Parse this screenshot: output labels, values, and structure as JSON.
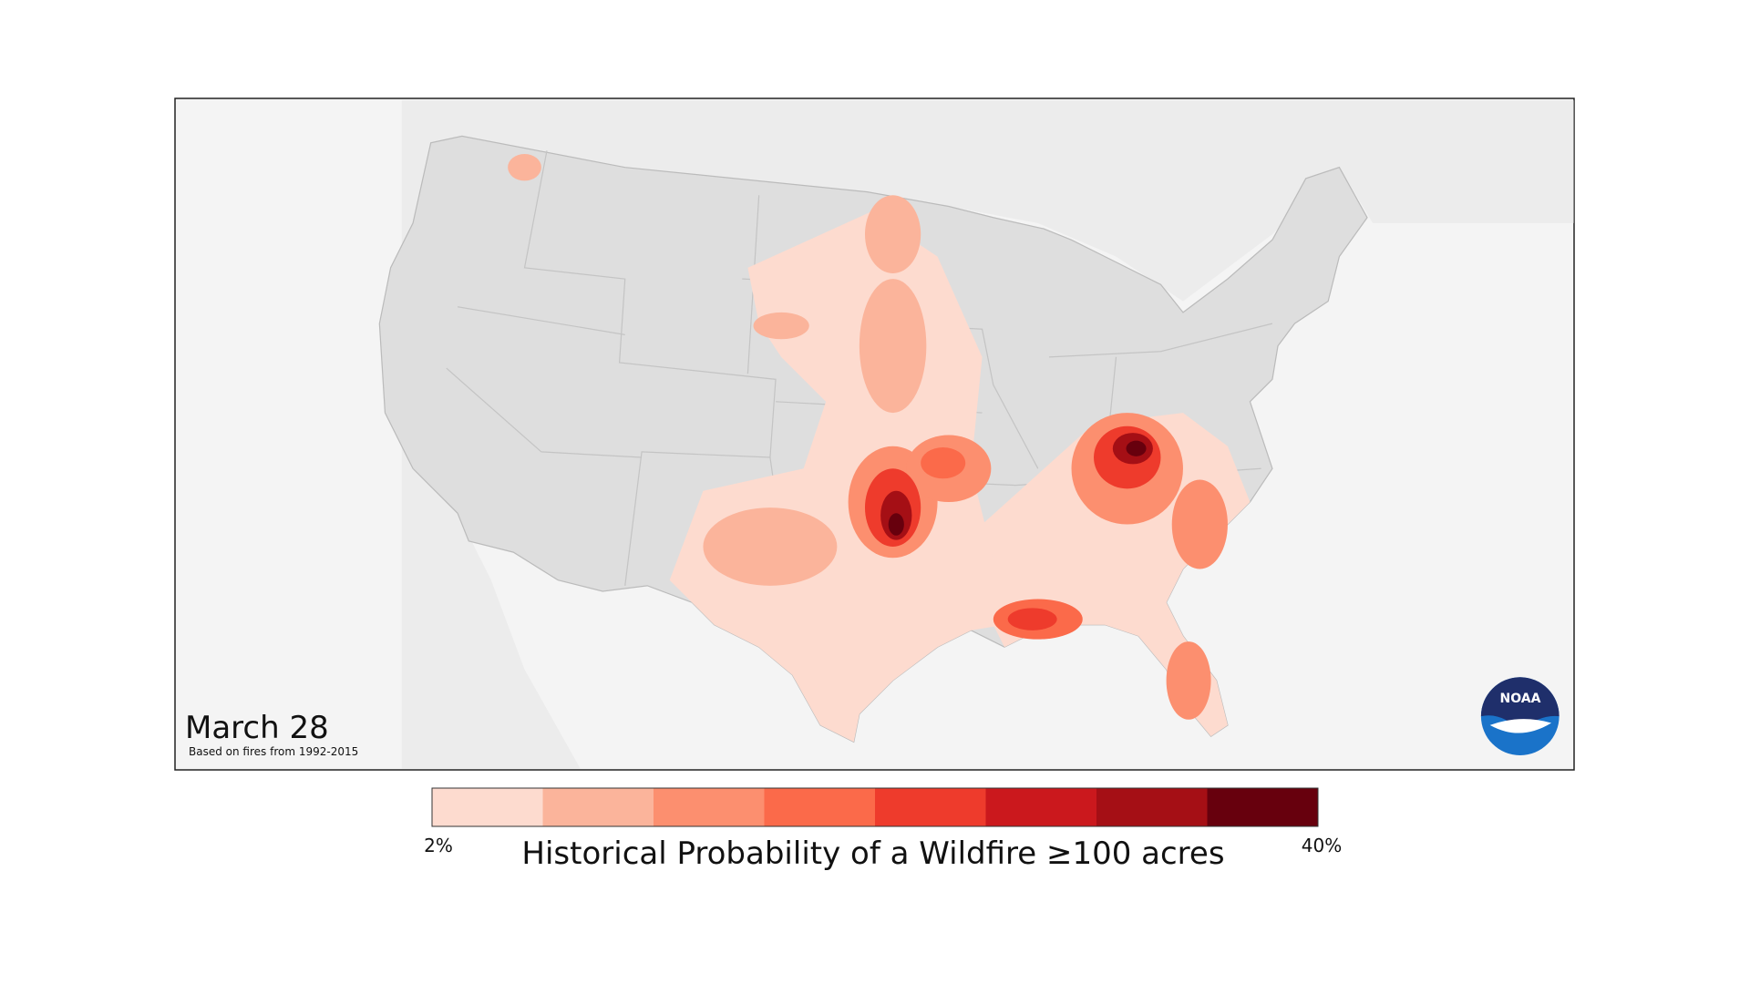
{
  "map": {
    "date": "March 28",
    "note": "Based on fires from 1992-2015",
    "logo": "NOAA"
  },
  "legend": {
    "title": "Historical Probability of a Wildfire ≥100 acres",
    "min_label": "2%",
    "max_label": "40%",
    "colors": [
      "#fddbcf",
      "#fbb49b",
      "#fc8f6f",
      "#fb6a4a",
      "#ee3b2c",
      "#cb181d",
      "#a50f15",
      "#67000d"
    ]
  }
}
